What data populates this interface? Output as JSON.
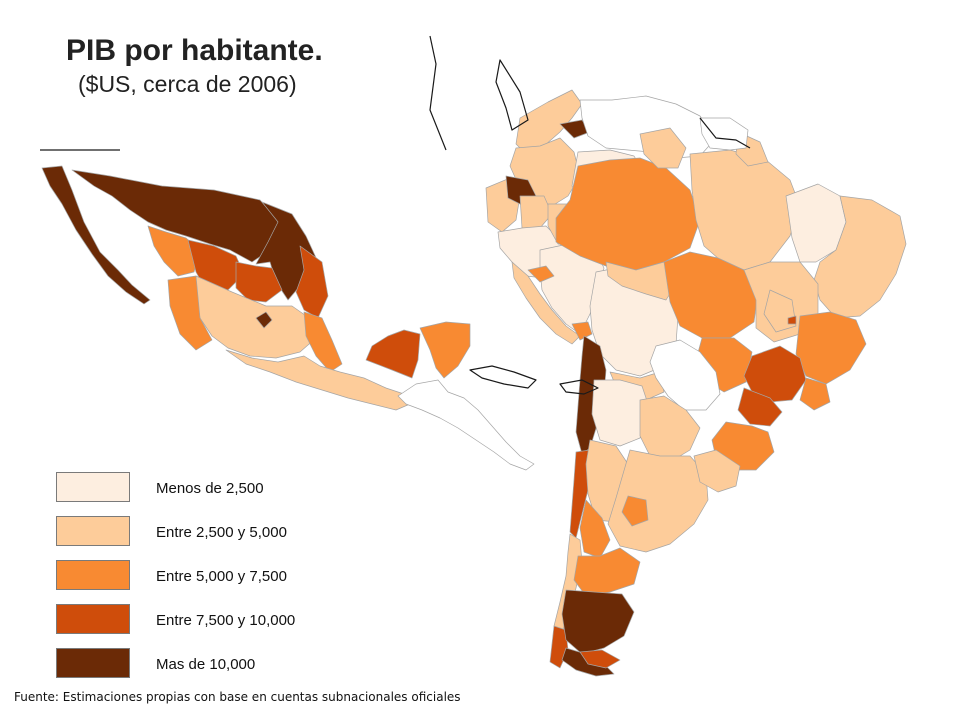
{
  "title": "PIB por habitante.",
  "subtitle": "($US, cerca de 2006)",
  "legend": {
    "items": [
      {
        "label": "Menos de 2,500",
        "color": "#fdeee0"
      },
      {
        "label": "Entre 2,500 y 5,000",
        "color": "#fdcc9a"
      },
      {
        "label": "Entre 5,000 y 7,500",
        "color": "#f88a32"
      },
      {
        "label": "Entre 7,500 y 10,000",
        "color": "#cf4d0b"
      },
      {
        "label": "Mas de 10,000",
        "color": "#6b2a06"
      }
    ]
  },
  "colors": {
    "border": "#9a9a9a",
    "outline": "#1a1a1a",
    "unclassified": "#ffffff"
  },
  "source": "Fuente: Estimaciones propias con base en cuentas subnacionales oficiales"
}
